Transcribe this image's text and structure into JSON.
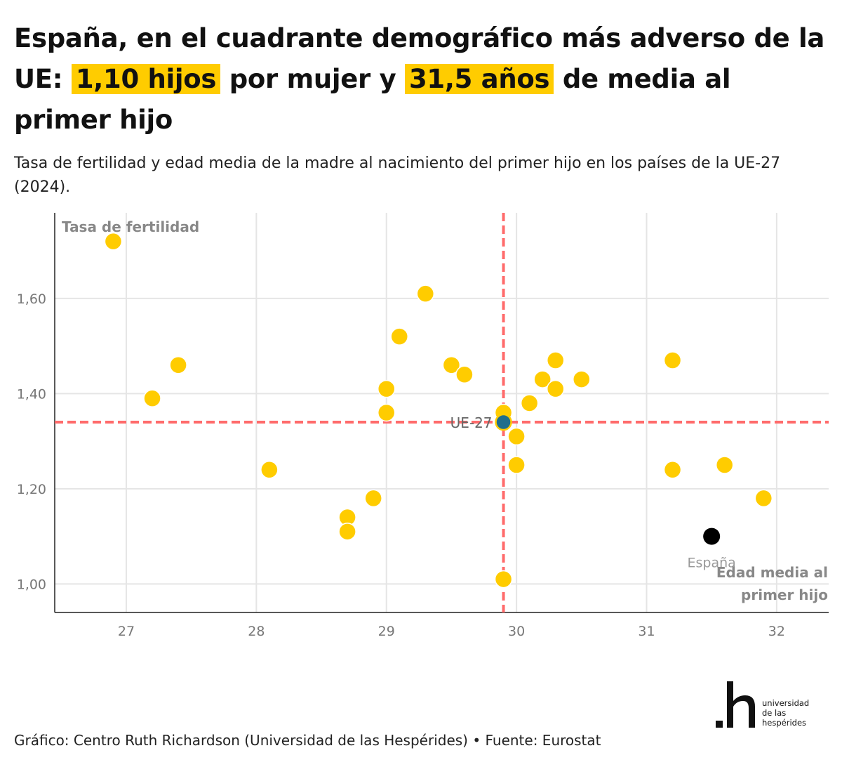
{
  "title": {
    "part1": "España, en el cuadrante demográfico más adverso de la UE:",
    "highlight1": "1,10 hijos",
    "part2": "por mujer y",
    "highlight2": "31,5 años",
    "part3": "de media al primer hijo"
  },
  "subtitle": "Tasa de fertilidad y edad media de la madre al nacimiento del primer hijo en los países de la UE-27 (2024).",
  "footer": "Gráfico: Centro Ruth Richardson (Universidad de las Hespérides) • Fuente: Eurostat",
  "logo": {
    "lines": [
      "universidad",
      "de las",
      "hespérides"
    ]
  },
  "colors": {
    "point": "#ffcc00",
    "spain": "#000000",
    "eu": "#1f6e8c",
    "reference": "#ff6b6b",
    "grid": "#e5e5e5",
    "highlight": "#ffcc00"
  },
  "chart_data": {
    "type": "scatter",
    "ylabel": "Tasa de fertilidad",
    "xlabel": "Edad media al primer hijo",
    "xlim": [
      26.45,
      32.4
    ],
    "ylim": [
      0.94,
      1.78
    ],
    "xticks": [
      27,
      28,
      29,
      30,
      31,
      32
    ],
    "xtick_labels": [
      "27",
      "28",
      "29",
      "30",
      "31",
      "32"
    ],
    "yticks": [
      1.0,
      1.2,
      1.4,
      1.6
    ],
    "ytick_labels": [
      "1,00",
      "1,20",
      "1,40",
      "1,60"
    ],
    "grid": true,
    "points": [
      {
        "x": 26.9,
        "y": 1.72
      },
      {
        "x": 27.2,
        "y": 1.39
      },
      {
        "x": 27.4,
        "y": 1.46
      },
      {
        "x": 28.1,
        "y": 1.24
      },
      {
        "x": 28.7,
        "y": 1.14
      },
      {
        "x": 28.7,
        "y": 1.11
      },
      {
        "x": 28.9,
        "y": 1.18
      },
      {
        "x": 29.0,
        "y": 1.41
      },
      {
        "x": 29.0,
        "y": 1.36
      },
      {
        "x": 29.1,
        "y": 1.52
      },
      {
        "x": 29.3,
        "y": 1.61
      },
      {
        "x": 29.5,
        "y": 1.46
      },
      {
        "x": 29.6,
        "y": 1.44
      },
      {
        "x": 29.9,
        "y": 1.36
      },
      {
        "x": 29.9,
        "y": 1.01
      },
      {
        "x": 30.0,
        "y": 1.31
      },
      {
        "x": 30.0,
        "y": 1.25
      },
      {
        "x": 30.1,
        "y": 1.38
      },
      {
        "x": 30.2,
        "y": 1.43
      },
      {
        "x": 30.3,
        "y": 1.47
      },
      {
        "x": 30.3,
        "y": 1.41
      },
      {
        "x": 30.5,
        "y": 1.43
      },
      {
        "x": 31.2,
        "y": 1.47
      },
      {
        "x": 31.2,
        "y": 1.24
      },
      {
        "x": 31.6,
        "y": 1.25
      },
      {
        "x": 31.9,
        "y": 1.18
      }
    ],
    "spain": {
      "label": "España",
      "x": 31.5,
      "y": 1.1
    },
    "eu": {
      "label": "UE-27",
      "x": 29.9,
      "y": 1.34
    },
    "reference_lines": {
      "x": 29.9,
      "y": 1.34
    }
  }
}
